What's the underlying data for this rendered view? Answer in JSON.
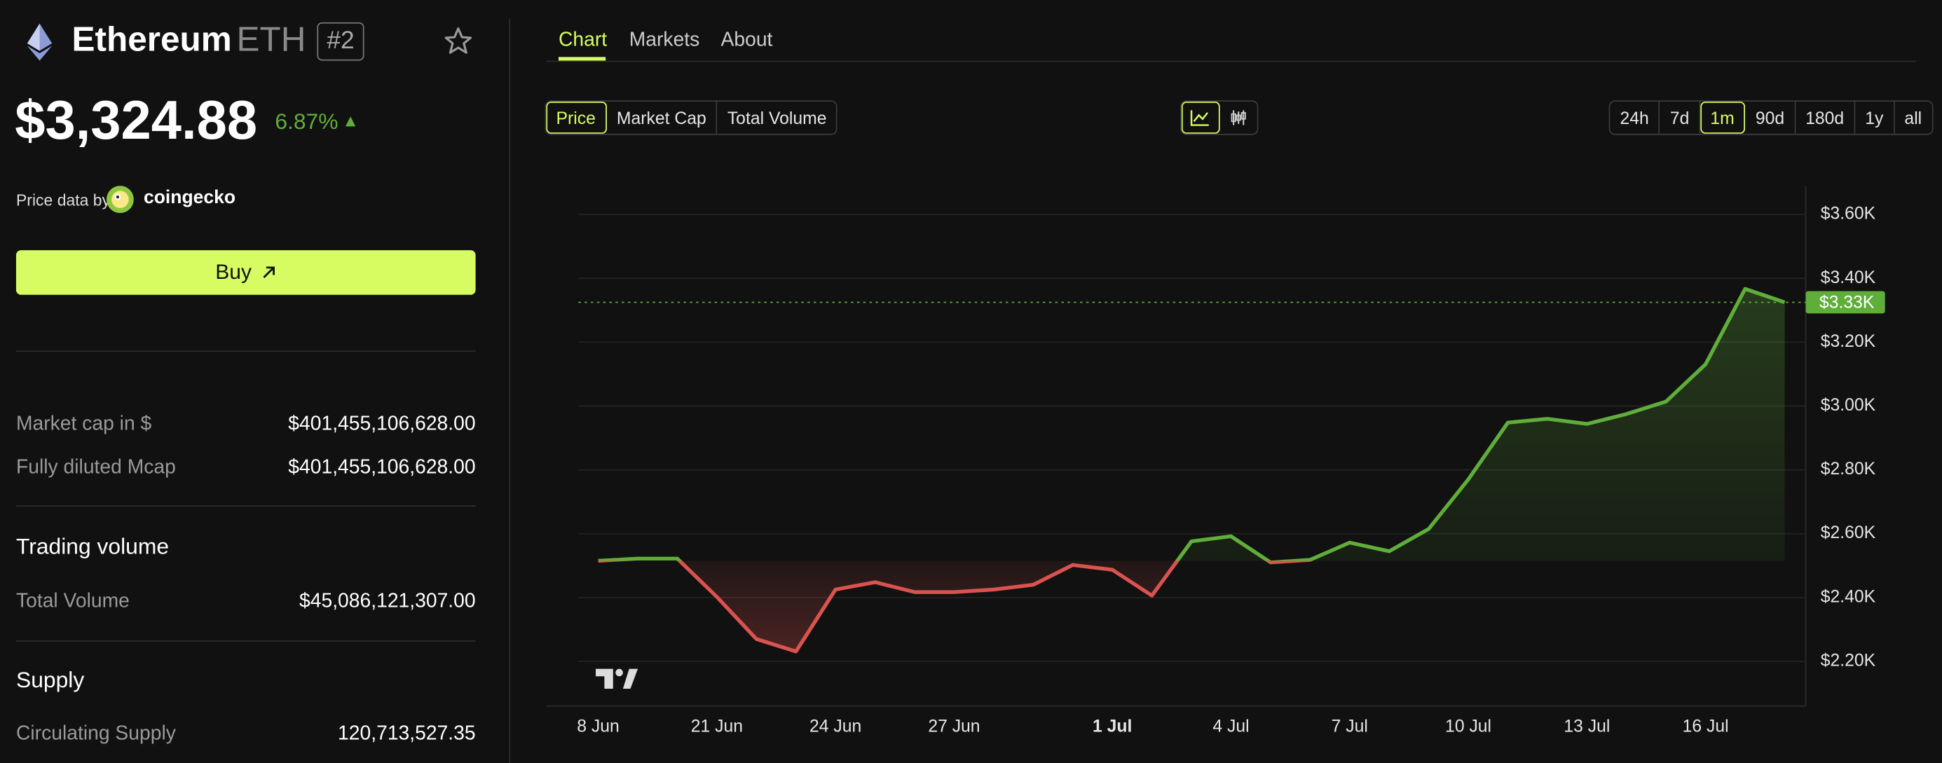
{
  "header": {
    "name": "Ethereum",
    "symbol": "ETH",
    "rank": "#2",
    "price": "$3,324.88",
    "change": "6.87%",
    "source_label": "Price data by",
    "source": "coingecko",
    "buy": "Buy"
  },
  "stats": {
    "market_cap_label": "Market cap in $",
    "market_cap": "$401,455,106,628.00",
    "fdv_label": "Fully diluted Mcap",
    "fdv": "$401,455,106,628.00",
    "volume_title": "Trading volume",
    "volume_label": "Total Volume",
    "volume": "$45,086,121,307.00",
    "supply_title": "Supply",
    "supply_label": "Circulating Supply",
    "supply": "120,713,527.35"
  },
  "tabs": [
    "Chart",
    "Markets",
    "About"
  ],
  "metric_buttons": [
    "Price",
    "Market Cap",
    "Total Volume"
  ],
  "range_buttons": [
    "24h",
    "7d",
    "1m",
    "90d",
    "180d",
    "1y",
    "all"
  ],
  "chart_data": {
    "type": "line",
    "categories": [
      "8 Jun",
      null,
      null,
      "21 Jun",
      null,
      null,
      "24 Jun",
      null,
      null,
      "27 Jun",
      null,
      null,
      null,
      "1 Jul",
      null,
      null,
      "4 Jul",
      null,
      null,
      "7 Jul",
      null,
      null,
      "10 Jul",
      null,
      null,
      "13 Jul",
      null,
      null,
      "16 Jul",
      null,
      null
    ],
    "values": [
      2515,
      2522,
      2522,
      2402,
      2270,
      2231,
      2425,
      2448,
      2417,
      2417,
      2425,
      2440,
      2502,
      2487,
      2406,
      2576,
      2592,
      2510,
      2518,
      2572,
      2545,
      2615,
      2770,
      2948,
      2960,
      2944,
      2975,
      3014,
      3131,
      3367,
      3325
    ],
    "ylim": [
      2060,
      3690
    ],
    "yticks": [
      {
        "value": 2200,
        "label": "$2.20K"
      },
      {
        "value": 2400,
        "label": "$2.40K"
      },
      {
        "value": 2600,
        "label": "$2.60K"
      },
      {
        "value": 2800,
        "label": "$2.80K"
      },
      {
        "value": 3000,
        "label": "$3.00K"
      },
      {
        "value": 3200,
        "label": "$3.20K"
      },
      {
        "value": 3400,
        "label": "$3.40K"
      },
      {
        "value": 3600,
        "label": "$3.60K"
      }
    ],
    "last_price_label": "$3.33K",
    "up_color": "#5fae3a",
    "down_color": "#d9534f",
    "grid": true
  }
}
